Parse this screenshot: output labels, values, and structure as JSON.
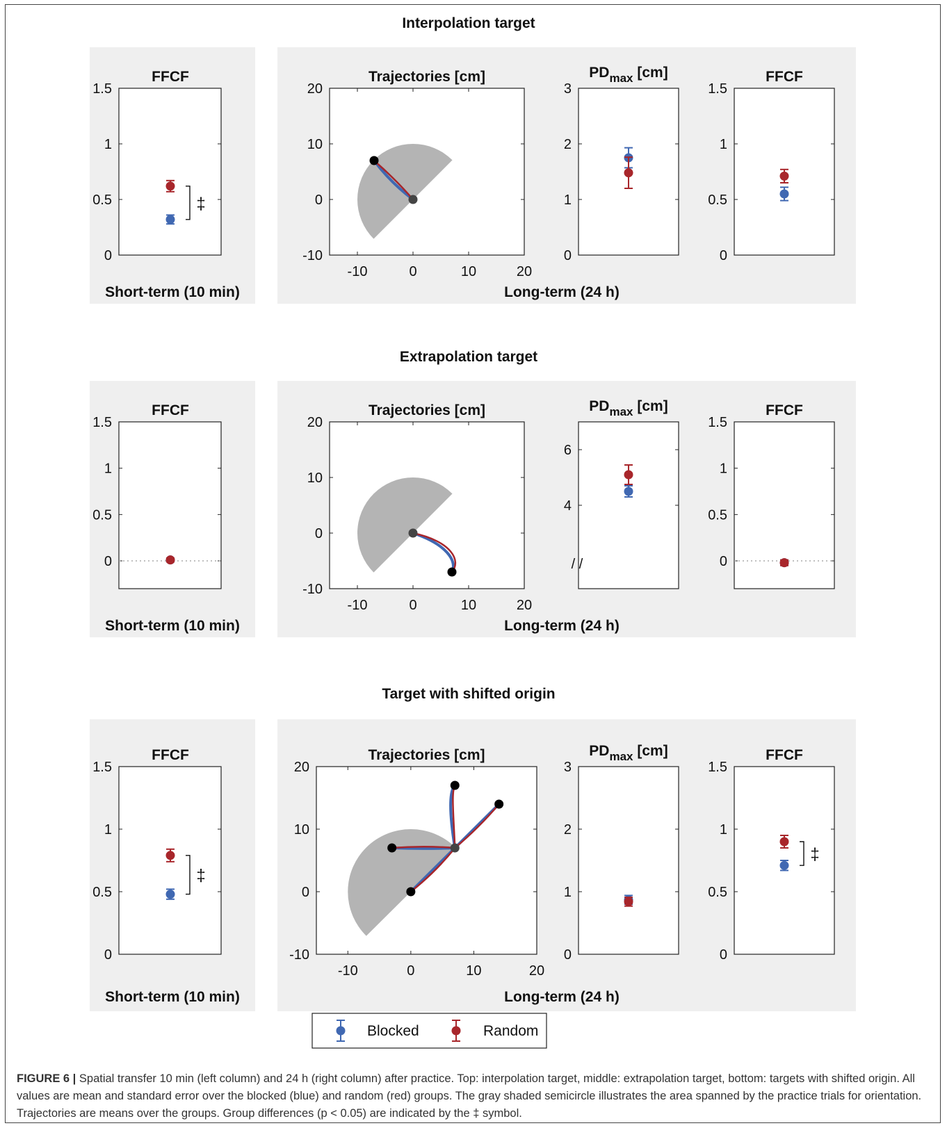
{
  "legend": {
    "blocked": "Blocked",
    "random": "Random"
  },
  "colors": {
    "blocked": "#4068b2",
    "random": "#a8262b",
    "panel_bg": "#efefef",
    "semicircle": "#b4b4b4"
  },
  "caption": {
    "label": "FIGURE 6 |",
    "text": "Spatial transfer 10 min (left column) and 24 h (right column) after practice. Top: interpolation target, middle: extrapolation target, bottom: targets with shifted origin. All values are mean and standard error over the blocked (blue) and random (red) groups. The gray shaded semicircle illustrates the area spanned by the practice trials for orientation. Trajectories are means over the groups. Group differences (p < 0.05) are indicated by the ‡ symbol."
  },
  "chart_data": [
    {
      "section": "Interpolation target",
      "short_term_label": "Short-term (10 min)",
      "long_term_label": "Long-term (24 h)",
      "ffcf_short": {
        "title": "FFCF",
        "type": "scatter",
        "ylim": [
          0,
          1.5
        ],
        "yticks": [
          "0",
          "0.5",
          "1",
          "1.5"
        ],
        "blocked": {
          "mean": 0.32,
          "err": 0.04
        },
        "random": {
          "mean": 0.62,
          "err": 0.05
        },
        "sig": "‡"
      },
      "trajectories": {
        "title": "Trajectories [cm]",
        "type": "line",
        "xlim": [
          -15,
          20
        ],
        "ylim": [
          -10,
          20
        ],
        "xticks": [
          "-10",
          "0",
          "10",
          "20"
        ],
        "yticks": [
          "-10",
          "0",
          "10",
          "20"
        ],
        "semicircle": {
          "center": [
            0,
            0
          ],
          "radius": 10,
          "start_deg": 45,
          "end_deg": 225
        },
        "origins": [
          [
            0,
            0
          ]
        ],
        "targets": [
          [
            -7,
            7
          ]
        ],
        "blocked_paths": [
          [
            [
              0,
              0
            ],
            [
              -4,
              3
            ],
            [
              -7,
              7
            ]
          ]
        ],
        "random_paths": [
          [
            [
              0,
              0
            ],
            [
              -3,
              3.5
            ],
            [
              -7,
              7
            ]
          ]
        ]
      },
      "pdmax": {
        "title": "PD",
        "title_sub": "max",
        "title_unit": " [cm]",
        "type": "scatter",
        "ylim": [
          0,
          3
        ],
        "yticks": [
          "0",
          "1",
          "2",
          "3"
        ],
        "blocked": {
          "mean": 1.75,
          "err": 0.18
        },
        "random": {
          "mean": 1.48,
          "err": 0.28
        }
      },
      "ffcf_long": {
        "title": "FFCF",
        "type": "scatter",
        "ylim": [
          0,
          1.5
        ],
        "yticks": [
          "0",
          "0.5",
          "1",
          "1.5"
        ],
        "blocked": {
          "mean": 0.55,
          "err": 0.06
        },
        "random": {
          "mean": 0.71,
          "err": 0.06
        }
      }
    },
    {
      "section": "Extrapolation target",
      "short_term_label": "Short-term (10 min)",
      "long_term_label": "Long-term (24 h)",
      "ffcf_short": {
        "title": "FFCF",
        "type": "scatter",
        "ylim": [
          -0.3,
          1.5
        ],
        "yticks": [
          "0",
          "0.5",
          "1",
          "1.5"
        ],
        "zero_line": true,
        "blocked": {
          "mean": 0.01,
          "err": 0.02
        },
        "random": {
          "mean": 0.01,
          "err": 0.02
        }
      },
      "trajectories": {
        "title": "Trajectories [cm]",
        "type": "line",
        "xlim": [
          -15,
          20
        ],
        "ylim": [
          -10,
          20
        ],
        "xticks": [
          "-10",
          "0",
          "10",
          "20"
        ],
        "yticks": [
          "-10",
          "0",
          "10",
          "20"
        ],
        "semicircle": {
          "center": [
            0,
            0
          ],
          "radius": 10,
          "start_deg": 45,
          "end_deg": 225
        },
        "origins": [
          [
            0,
            0
          ]
        ],
        "targets": [
          [
            7,
            -7
          ]
        ],
        "blocked_paths": [
          [
            [
              0,
              0
            ],
            [
              6,
              -2
            ],
            [
              8,
              -5
            ],
            [
              7,
              -7
            ]
          ]
        ],
        "random_paths": [
          [
            [
              0,
              0
            ],
            [
              7,
              -1.5
            ],
            [
              8.7,
              -5
            ],
            [
              7,
              -7
            ]
          ]
        ]
      },
      "pdmax": {
        "title": "PD",
        "title_sub": "max",
        "title_unit": " [cm]",
        "type": "scatter",
        "ylim": [
          1,
          7
        ],
        "yticks": [
          "4",
          "6"
        ],
        "axis_break": "/ /",
        "blocked": {
          "mean": 4.5,
          "err": 0.2
        },
        "random": {
          "mean": 5.1,
          "err": 0.35
        }
      },
      "ffcf_long": {
        "title": "FFCF",
        "type": "scatter",
        "ylim": [
          -0.3,
          1.5
        ],
        "yticks": [
          "0",
          "0.5",
          "1",
          "1.5"
        ],
        "zero_line": true,
        "blocked": {
          "mean": -0.02,
          "err": 0.03
        },
        "random": {
          "mean": -0.02,
          "err": 0.03
        }
      }
    },
    {
      "section": "Target with shifted origin",
      "short_term_label": "Short-term (10 min)",
      "long_term_label": "Long-term (24 h)",
      "ffcf_short": {
        "title": "FFCF",
        "type": "scatter",
        "ylim": [
          0,
          1.5
        ],
        "yticks": [
          "0",
          "0.5",
          "1",
          "1.5"
        ],
        "blocked": {
          "mean": 0.48,
          "err": 0.04
        },
        "random": {
          "mean": 0.79,
          "err": 0.05
        },
        "sig": "‡"
      },
      "trajectories": {
        "title": "Trajectories [cm]",
        "type": "line",
        "xlim": [
          -15,
          20
        ],
        "ylim": [
          -10,
          20
        ],
        "xticks": [
          "-10",
          "0",
          "10",
          "20"
        ],
        "yticks": [
          "-10",
          "0",
          "10",
          "20"
        ],
        "semicircle": {
          "center": [
            0,
            0
          ],
          "radius": 10,
          "start_deg": 45,
          "end_deg": 225
        },
        "origins": [
          [
            7,
            7
          ]
        ],
        "targets": [
          [
            -3,
            7
          ],
          [
            7,
            17
          ],
          [
            14,
            14
          ],
          [
            0,
            0
          ]
        ],
        "blocked_paths": [
          [
            [
              7,
              7
            ],
            [
              2,
              6.8
            ],
            [
              -3,
              7
            ]
          ],
          [
            [
              7,
              7
            ],
            [
              6.2,
              12
            ],
            [
              6,
              16
            ],
            [
              7,
              17
            ]
          ],
          [
            [
              7,
              7
            ],
            [
              10.5,
              10.5
            ],
            [
              14,
              14
            ]
          ],
          [
            [
              7,
              7
            ],
            [
              3,
              3
            ],
            [
              0,
              0
            ]
          ]
        ],
        "random_paths": [
          [
            [
              7,
              7
            ],
            [
              2,
              7.4
            ],
            [
              -3,
              7
            ]
          ],
          [
            [
              7,
              7
            ],
            [
              6.8,
              12
            ],
            [
              6.4,
              16
            ],
            [
              7,
              17
            ]
          ],
          [
            [
              7,
              7
            ],
            [
              10.8,
              10.2
            ],
            [
              14,
              14
            ]
          ],
          [
            [
              7,
              7
            ],
            [
              4,
              3.2
            ],
            [
              0,
              0
            ]
          ]
        ]
      },
      "pdmax": {
        "title": "PD",
        "title_sub": "max",
        "title_unit": " [cm]",
        "type": "scatter",
        "ylim": [
          0,
          3
        ],
        "yticks": [
          "0",
          "1",
          "2",
          "3"
        ],
        "blocked": {
          "mean": 0.87,
          "err": 0.07
        },
        "random": {
          "mean": 0.84,
          "err": 0.07
        }
      },
      "ffcf_long": {
        "title": "FFCF",
        "type": "scatter",
        "ylim": [
          0,
          1.5
        ],
        "yticks": [
          "0",
          "0.5",
          "1",
          "1.5"
        ],
        "blocked": {
          "mean": 0.71,
          "err": 0.04
        },
        "random": {
          "mean": 0.9,
          "err": 0.05
        },
        "sig": "‡"
      }
    }
  ]
}
